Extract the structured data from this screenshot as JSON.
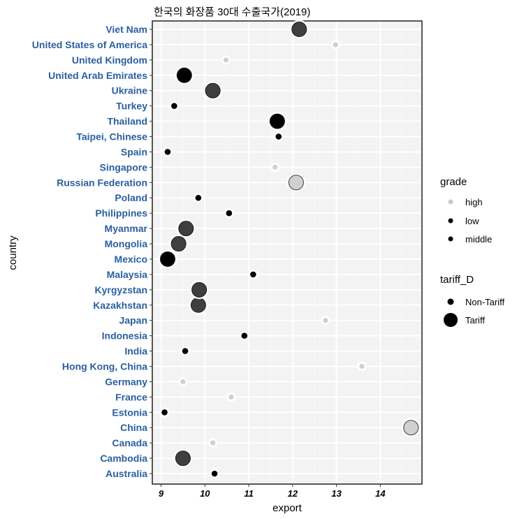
{
  "chart_data": {
    "type": "scatter",
    "title": "한국의 화장품 30대 수출국가(2019)",
    "xlabel": "export",
    "ylabel": "country",
    "xlim": [
      8.8,
      14.95
    ],
    "xticks": [
      9,
      10,
      11,
      12,
      13,
      14
    ],
    "grid": true,
    "legend_position": "right",
    "colors": {
      "panel_bg": "#f3f3f3",
      "grid_major": "#ffffff",
      "grid_minor": "#fafafa",
      "tick_label": "#2b5fa0",
      "high": "#c8c8c8",
      "low": "#000000",
      "middle": "#3f3f3f"
    },
    "categories": [
      "Australia",
      "Cambodia",
      "Canada",
      "China",
      "Estonia",
      "France",
      "Germany",
      "Hong Kong, China",
      "India",
      "Indonesia",
      "Japan",
      "Kazakhstan",
      "Kyrgyzstan",
      "Malaysia",
      "Mexico",
      "Mongolia",
      "Myanmar",
      "Philippines",
      "Poland",
      "Russian Federation",
      "Singapore",
      "Spain",
      "Taipei, Chinese",
      "Thailand",
      "Turkey",
      "Ukraine",
      "United Arab Emirates",
      "United Kingdom",
      "United States of America",
      "Viet Nam"
    ],
    "points": [
      {
        "country": "Australia",
        "export": 10.22,
        "grade": "low",
        "tariff": "Non-Tariff"
      },
      {
        "country": "Cambodia",
        "export": 9.5,
        "grade": "middle",
        "tariff": "Tariff"
      },
      {
        "country": "Canada",
        "export": 10.18,
        "grade": "high",
        "tariff": "Non-Tariff"
      },
      {
        "country": "China",
        "export": 14.7,
        "grade": "high",
        "tariff": "Tariff"
      },
      {
        "country": "Estonia",
        "export": 9.08,
        "grade": "low",
        "tariff": "Non-Tariff"
      },
      {
        "country": "France",
        "export": 10.6,
        "grade": "high",
        "tariff": "Non-Tariff"
      },
      {
        "country": "Germany",
        "export": 9.5,
        "grade": "high",
        "tariff": "Non-Tariff"
      },
      {
        "country": "Hong Kong, China",
        "export": 13.58,
        "grade": "high",
        "tariff": "Non-Tariff"
      },
      {
        "country": "India",
        "export": 9.55,
        "grade": "low",
        "tariff": "Non-Tariff"
      },
      {
        "country": "Indonesia",
        "export": 10.9,
        "grade": "low",
        "tariff": "Non-Tariff"
      },
      {
        "country": "Japan",
        "export": 12.75,
        "grade": "high",
        "tariff": "Non-Tariff"
      },
      {
        "country": "Kazakhstan",
        "export": 9.85,
        "grade": "middle",
        "tariff": "Tariff"
      },
      {
        "country": "Kyrgyzstan",
        "export": 9.87,
        "grade": "middle",
        "tariff": "Tariff"
      },
      {
        "country": "Malaysia",
        "export": 11.1,
        "grade": "low",
        "tariff": "Non-Tariff"
      },
      {
        "country": "Mexico",
        "export": 9.15,
        "grade": "low",
        "tariff": "Tariff"
      },
      {
        "country": "Mongolia",
        "export": 9.4,
        "grade": "middle",
        "tariff": "Tariff"
      },
      {
        "country": "Myanmar",
        "export": 9.57,
        "grade": "middle",
        "tariff": "Tariff"
      },
      {
        "country": "Philippines",
        "export": 10.55,
        "grade": "low",
        "tariff": "Non-Tariff"
      },
      {
        "country": "Poland",
        "export": 9.85,
        "grade": "low",
        "tariff": "Non-Tariff"
      },
      {
        "country": "Russian Federation",
        "export": 12.08,
        "grade": "high",
        "tariff": "Tariff"
      },
      {
        "country": "Singapore",
        "export": 11.6,
        "grade": "high",
        "tariff": "Non-Tariff"
      },
      {
        "country": "Spain",
        "export": 9.15,
        "grade": "low",
        "tariff": "Non-Tariff"
      },
      {
        "country": "Taipei, Chinese",
        "export": 11.68,
        "grade": "low",
        "tariff": "Non-Tariff"
      },
      {
        "country": "Thailand",
        "export": 11.65,
        "grade": "low",
        "tariff": "Tariff"
      },
      {
        "country": "Turkey",
        "export": 9.3,
        "grade": "low",
        "tariff": "Non-Tariff"
      },
      {
        "country": "Ukraine",
        "export": 10.18,
        "grade": "middle",
        "tariff": "Tariff"
      },
      {
        "country": "United Arab Emirates",
        "export": 9.53,
        "grade": "low",
        "tariff": "Tariff"
      },
      {
        "country": "United Kingdom",
        "export": 10.48,
        "grade": "high",
        "tariff": "Non-Tariff"
      },
      {
        "country": "United States of America",
        "export": 12.98,
        "grade": "high",
        "tariff": "Non-Tariff"
      },
      {
        "country": "Viet Nam",
        "export": 12.15,
        "grade": "middle",
        "tariff": "Tariff"
      }
    ],
    "legends": [
      {
        "title": "grade",
        "entries": [
          "high",
          "low",
          "middle"
        ]
      },
      {
        "title": "tariff_D",
        "entries": [
          "Non-Tariff",
          "Tariff"
        ]
      }
    ]
  }
}
